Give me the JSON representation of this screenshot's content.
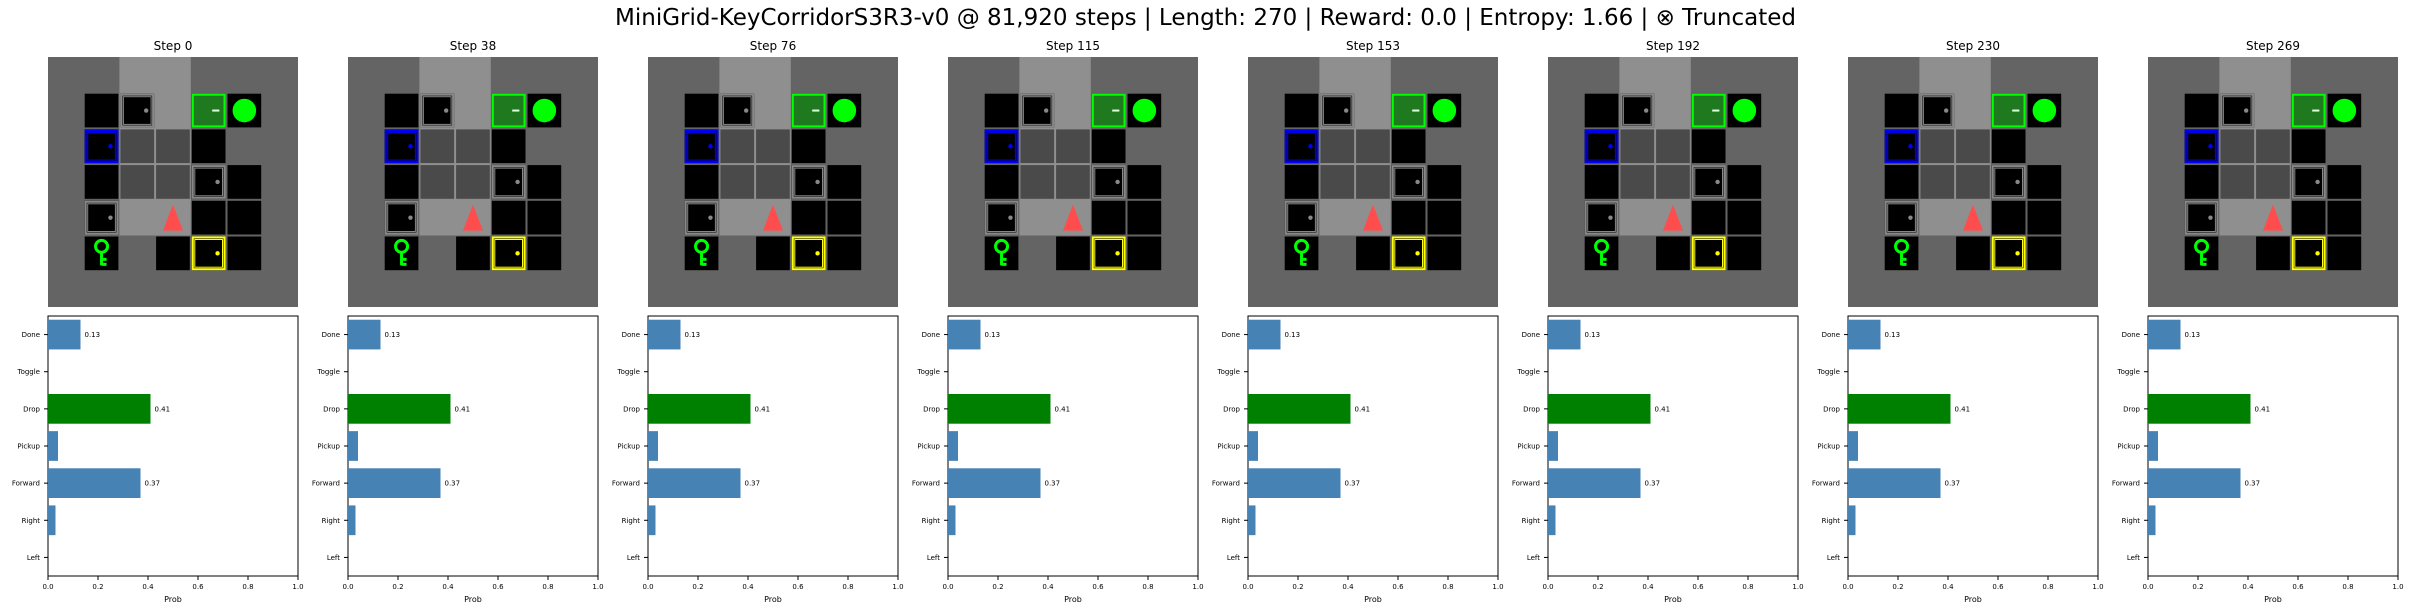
{
  "title": "MiniGrid-KeyCorridorS3R3-v0 @ 81,920 steps | Length: 270 | Reward: 0.0 | Entropy: 1.66 | ⊗ Truncated",
  "steps": [
    "Step 0",
    "Step 38",
    "Step 76",
    "Step 115",
    "Step 153",
    "Step 192",
    "Step 230",
    "Step 269"
  ],
  "colors": {
    "bar": "#4682b4",
    "bar_selected": "#008000",
    "wall": "#646464",
    "corridor": "#8f8f8f",
    "room_floor": "#000000",
    "door_locked_border": "#00ff00",
    "door_blue": "#0000ff",
    "door_yellow": "#ffff00",
    "door_grey": "#646464",
    "ball": "#00ff00",
    "key": "#00ff00",
    "agent": "#ff4d4d"
  },
  "grid_objects": {
    "agent": "agent-triangle-icon facing up",
    "ball": "green-ball-icon",
    "key": "green-key-icon",
    "doors": [
      "green-locked-door",
      "blue-door",
      "yellow-door",
      "grey-door"
    ]
  },
  "chart_data": {
    "type": "bar",
    "orientation": "horizontal",
    "categories": [
      "Left",
      "Right",
      "Forward",
      "Pickup",
      "Drop",
      "Toggle",
      "Done"
    ],
    "values": [
      0.0,
      0.03,
      0.37,
      0.04,
      0.41,
      0.0,
      0.13
    ],
    "value_labels": {
      "Forward": "0.37",
      "Drop": "0.41",
      "Done": "0.13"
    },
    "selected_action": "Drop",
    "xlabel": "Prob",
    "xlim": [
      0,
      1.0
    ],
    "xticks": [
      "0.0",
      "0.2",
      "0.4",
      "0.6",
      "0.8",
      "1.0"
    ],
    "panels": 8
  }
}
